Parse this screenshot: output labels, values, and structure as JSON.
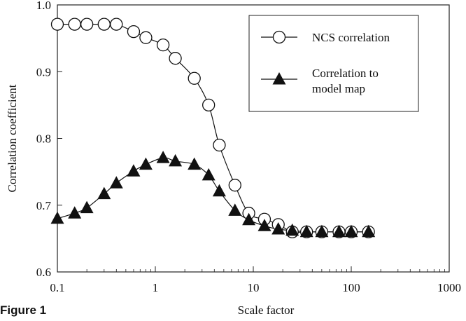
{
  "figure_label": "Figure 1",
  "chart_data": {
    "type": "scatter",
    "title": "",
    "xlabel": "Scale factor",
    "ylabel": "Correlation coefficient",
    "x_scale": "log",
    "xlim": [
      0.1,
      1000
    ],
    "ylim": [
      0.6,
      1.0
    ],
    "x_ticks": [
      0.1,
      1,
      10,
      100,
      1000
    ],
    "x_tick_labels": [
      "0.1",
      "1",
      "10",
      "100",
      "1000"
    ],
    "y_ticks": [
      0.6,
      0.7,
      0.8,
      0.9,
      1.0
    ],
    "y_tick_labels": [
      "0.6",
      "0.7",
      "0.8",
      "0.9",
      "1.0"
    ],
    "grid": false,
    "legend_position": "top-right",
    "series": [
      {
        "name": "NCS correlation",
        "marker": "open-circle",
        "color": "#111111",
        "x": [
          0.1,
          0.15,
          0.2,
          0.3,
          0.4,
          0.6,
          0.8,
          1.2,
          1.6,
          2.5,
          3.5,
          4.5,
          6.5,
          9,
          13,
          18,
          25,
          35,
          50,
          75,
          100,
          150
        ],
        "y": [
          0.971,
          0.971,
          0.971,
          0.971,
          0.971,
          0.96,
          0.951,
          0.94,
          0.92,
          0.89,
          0.85,
          0.79,
          0.73,
          0.688,
          0.679,
          0.671,
          0.66,
          0.66,
          0.66,
          0.66,
          0.66,
          0.66
        ]
      },
      {
        "name": "Correlation to\nmodel map",
        "marker": "filled-triangle",
        "color": "#111111",
        "x": [
          0.1,
          0.15,
          0.2,
          0.3,
          0.4,
          0.6,
          0.8,
          1.2,
          1.6,
          2.5,
          3.5,
          4.5,
          6.5,
          9,
          13,
          18,
          25,
          35,
          50,
          75,
          100,
          150
        ],
        "y": [
          0.68,
          0.688,
          0.696,
          0.717,
          0.733,
          0.751,
          0.761,
          0.771,
          0.766,
          0.761,
          0.745,
          0.721,
          0.692,
          0.678,
          0.669,
          0.664,
          0.662,
          0.66,
          0.66,
          0.66,
          0.66,
          0.66
        ]
      }
    ]
  }
}
